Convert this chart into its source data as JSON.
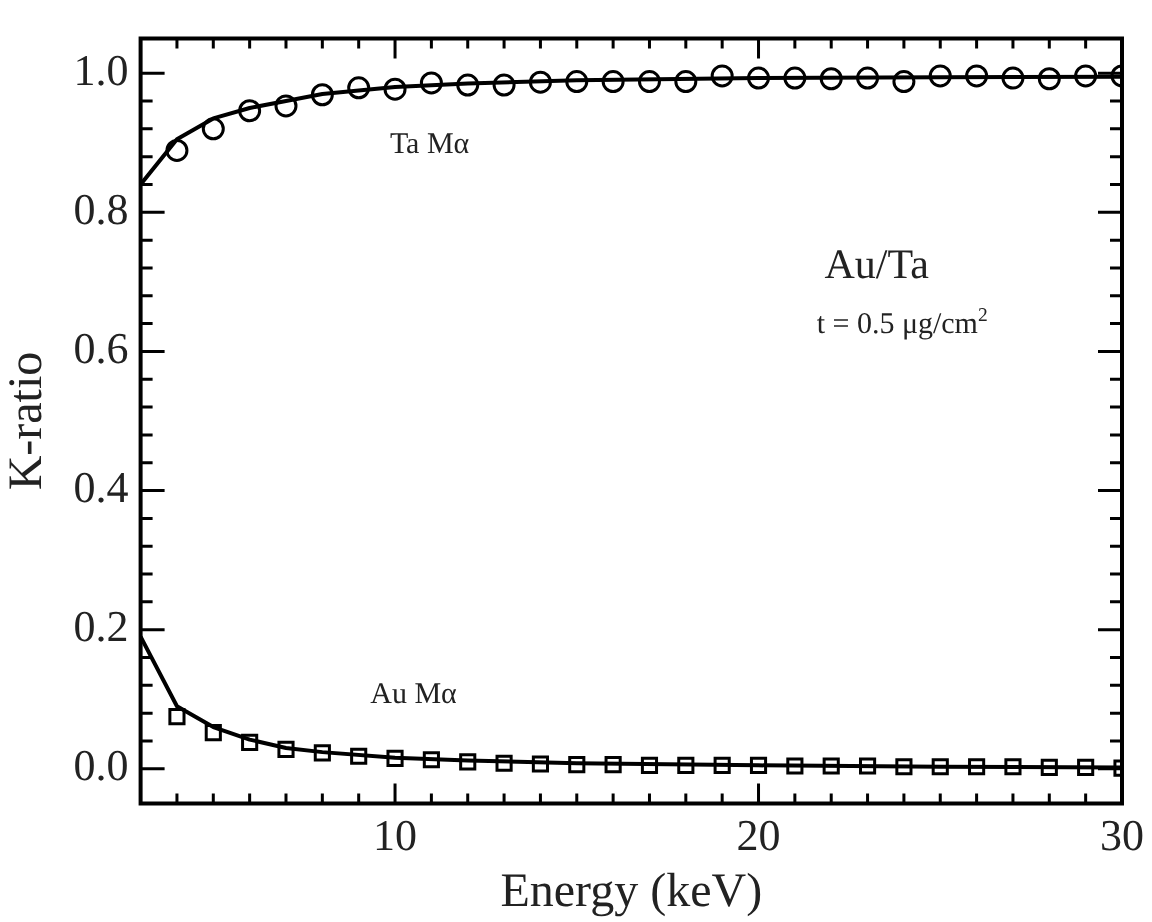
{
  "chart_data": {
    "type": "scatter",
    "xlabel": "Energy (keV)",
    "ylabel": "K-ratio",
    "xlim": [
      3,
      30
    ],
    "ylim": [
      -0.05,
      1.05
    ],
    "xticks": [
      {
        "value": 4,
        "label": null
      },
      {
        "value": 5,
        "label": null
      },
      {
        "value": 6,
        "label": null
      },
      {
        "value": 7,
        "label": null
      },
      {
        "value": 8,
        "label": null
      },
      {
        "value": 9,
        "label": null
      },
      10,
      {
        "value": 11,
        "label": null
      },
      {
        "value": 12,
        "label": null
      },
      {
        "value": 13,
        "label": null
      },
      {
        "value": 14,
        "label": null
      },
      {
        "value": 15,
        "label": null
      },
      {
        "value": 16,
        "label": null
      },
      {
        "value": 17,
        "label": null
      },
      {
        "value": 18,
        "label": null
      },
      {
        "value": 19,
        "label": null
      },
      20,
      {
        "value": 21,
        "label": null
      },
      {
        "value": 22,
        "label": null
      },
      {
        "value": 23,
        "label": null
      },
      {
        "value": 24,
        "label": null
      },
      {
        "value": 25,
        "label": null
      },
      {
        "value": 26,
        "label": null
      },
      {
        "value": 27,
        "label": null
      },
      {
        "value": 28,
        "label": null
      },
      {
        "value": 29,
        "label": null
      },
      30
    ],
    "yticks": [
      {
        "value": 0,
        "label": "0.0"
      },
      {
        "value": 0.04,
        "label": null
      },
      {
        "value": 0.08,
        "label": null
      },
      {
        "value": 0.12,
        "label": null
      },
      {
        "value": 0.16,
        "label": null
      },
      {
        "value": 0.2,
        "label": "0.2"
      },
      {
        "value": 0.24,
        "label": null
      },
      {
        "value": 0.28,
        "label": null
      },
      {
        "value": 0.32,
        "label": null
      },
      {
        "value": 0.36,
        "label": null
      },
      {
        "value": 0.4,
        "label": "0.4"
      },
      {
        "value": 0.44,
        "label": null
      },
      {
        "value": 0.48,
        "label": null
      },
      {
        "value": 0.52,
        "label": null
      },
      {
        "value": 0.56,
        "label": null
      },
      {
        "value": 0.6,
        "label": "0.6"
      },
      {
        "value": 0.64,
        "label": null
      },
      {
        "value": 0.68,
        "label": null
      },
      {
        "value": 0.72,
        "label": null
      },
      {
        "value": 0.76,
        "label": null
      },
      {
        "value": 0.8,
        "label": "0.8"
      },
      {
        "value": 0.84,
        "label": null
      },
      {
        "value": 0.88,
        "label": null
      },
      {
        "value": 0.92,
        "label": null
      },
      {
        "value": 0.96,
        "label": null
      },
      {
        "value": 1.0,
        "label": "1.0"
      }
    ],
    "grid": false,
    "legend": false,
    "series": [
      {
        "marker": "circle",
        "color": "#000000",
        "x": [
          4,
          5,
          6,
          7,
          8,
          9,
          10,
          11,
          12,
          13,
          14,
          15,
          16,
          17,
          18,
          19,
          20,
          21,
          22,
          23,
          24,
          25,
          26,
          27,
          28,
          29,
          30
        ],
        "values": [
          0.889,
          0.92,
          0.946,
          0.953,
          0.969,
          0.979,
          0.977,
          0.986,
          0.983,
          0.983,
          0.987,
          0.988,
          0.988,
          0.988,
          0.988,
          0.996,
          0.993,
          0.993,
          0.992,
          0.993,
          0.988,
          0.996,
          0.996,
          0.993,
          0.992,
          0.996,
          0.996
        ]
      },
      {
        "type": "line",
        "marker": "none",
        "line_style": "solid",
        "color": "#000000",
        "x": [
          3,
          4,
          5,
          6,
          7,
          8,
          10,
          12,
          15,
          20,
          25,
          30
        ],
        "values": [
          0.84,
          0.905,
          0.935,
          0.95,
          0.96,
          0.97,
          0.98,
          0.985,
          0.99,
          0.993,
          0.994,
          0.995
        ]
      },
      {
        "marker": "square",
        "color": "#000000",
        "x": [
          4,
          5,
          6,
          7,
          8,
          9,
          10,
          11,
          12,
          13,
          14,
          15,
          16,
          17,
          18,
          19,
          20,
          21,
          22,
          23,
          24,
          25,
          26,
          27,
          28,
          29,
          30
        ],
        "values": [
          0.075,
          0.052,
          0.038,
          0.028,
          0.023,
          0.018,
          0.015,
          0.013,
          0.01,
          0.008,
          0.007,
          0.006,
          0.006,
          0.005,
          0.005,
          0.005,
          0.005,
          0.004,
          0.004,
          0.004,
          0.003,
          0.003,
          0.003,
          0.003,
          0.002,
          0.002,
          0.001
        ]
      },
      {
        "type": "line",
        "marker": "none",
        "line_style": "solid",
        "color": "#000000",
        "x": [
          3,
          4,
          5,
          6,
          7,
          8,
          10,
          12,
          15,
          20,
          25,
          30
        ],
        "values": [
          0.19,
          0.09,
          0.06,
          0.042,
          0.03,
          0.024,
          0.016,
          0.012,
          0.008,
          0.005,
          0.003,
          0.002
        ]
      }
    ],
    "annotations": [
      "Ta Mα",
      "Au Mα",
      "Au/Ta",
      "t = 0.5 μg/cm$^{2}$"
    ]
  }
}
